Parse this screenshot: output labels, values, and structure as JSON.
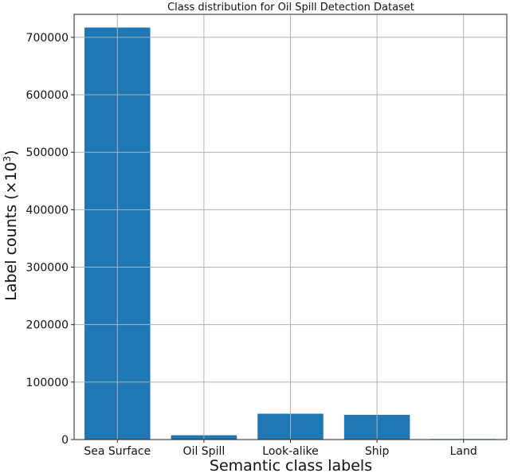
{
  "chart_data": {
    "type": "bar",
    "title": "Class distribution for Oil Spill Detection Dataset",
    "xlabel": "Semantic class labels",
    "ylabel": "Label counts (×10",
    "ylabel_superscript": "3",
    "ylabel_suffix": ")",
    "categories": [
      "Sea Surface",
      "Oil Spill",
      "Look-alike",
      "Ship",
      "Land"
    ],
    "values": [
      717000,
      7500,
      45000,
      43000,
      1000
    ],
    "ylim": [
      0,
      740000
    ],
    "yticks": [
      0,
      100000,
      200000,
      300000,
      400000,
      500000,
      600000,
      700000
    ],
    "ytick_labels": [
      "0",
      "100000",
      "200000",
      "300000",
      "400000",
      "500000",
      "600000",
      "700000"
    ],
    "grid": true,
    "bar_color": "#1f77b4",
    "grid_color": "#b0b0b0"
  }
}
